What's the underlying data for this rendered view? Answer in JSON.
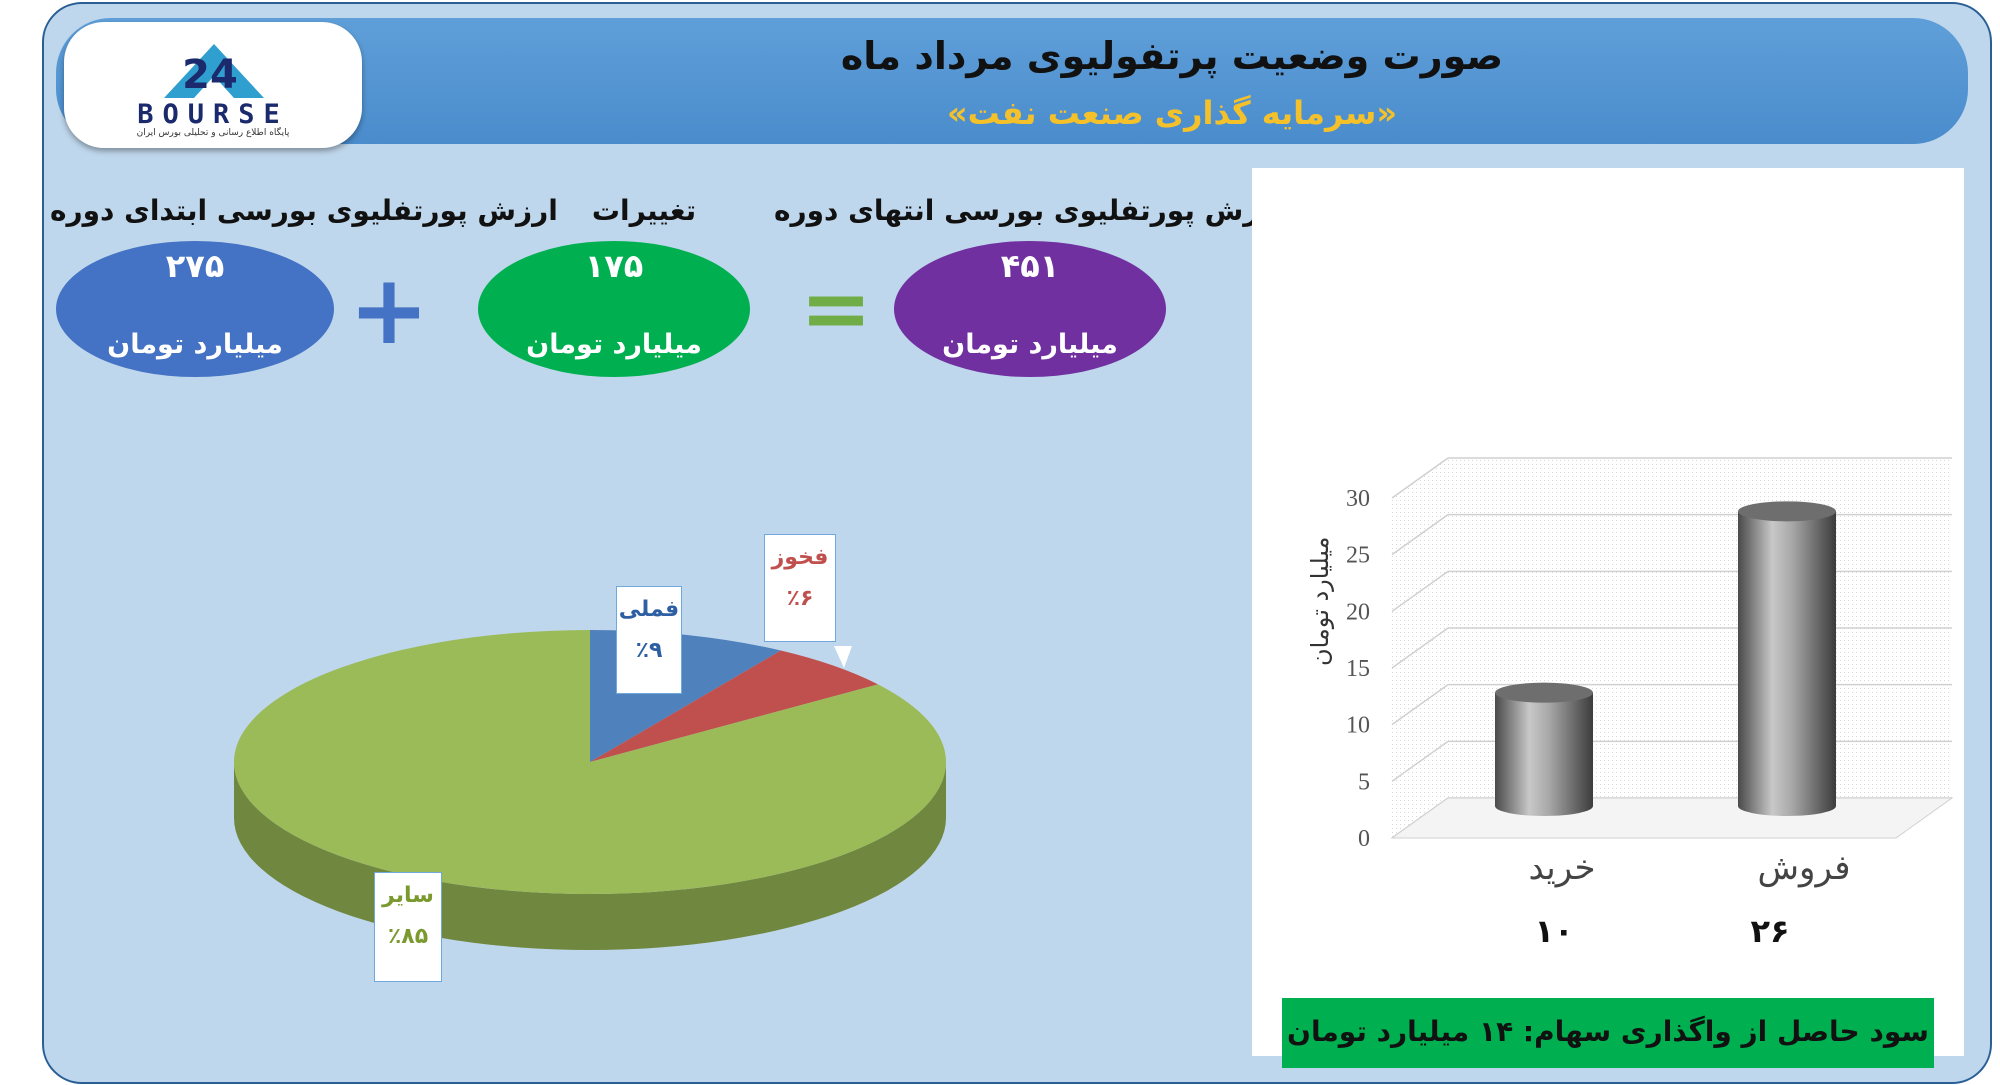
{
  "header": {
    "title": "صورت وضعیت پرتفولیوی مرداد ماه",
    "subtitle": "«سرمایه گذاری صنعت نفت»"
  },
  "logo": {
    "text": "BOURSE",
    "number": "24",
    "caption": "پایگاه اطلاع رسانی و تحلیلی بورس ایران"
  },
  "summary": {
    "end": {
      "label": "ارزش پورتفلیوی بورسی انتهای دوره",
      "value": "۴۵۱",
      "unit": "میلیارد تومان",
      "color": "#7030a0"
    },
    "change": {
      "label": "تغییرات",
      "value": "۱۷۵",
      "unit": "میلیارد تومان",
      "color": "#00b050"
    },
    "start": {
      "label": "ارزش پورتفلیوی بورسی ابتدای دوره",
      "value": "۲۷۵",
      "unit": "میلیارد تومان",
      "color": "#4472c4"
    },
    "plus_symbol": "+",
    "equals_symbol": "=",
    "plus_color": "#4472c4",
    "equals_color": "#70ad47"
  },
  "chart_data": [
    {
      "type": "pie",
      "title": "",
      "slices": [
        {
          "label": "فملی",
          "percent_label": "٪۹",
          "value": 9,
          "color": "#4f81bd",
          "label_color": "#2e5fa3"
        },
        {
          "label": "فخوز",
          "percent_label": "٪۶",
          "value": 6,
          "color": "#c0504d",
          "label_color": "#c0504d"
        },
        {
          "label": "سایر",
          "percent_label": "٪۸۵",
          "value": 85,
          "color": "#9bbb59",
          "label_color": "#7a9a2e"
        }
      ]
    },
    {
      "type": "bar",
      "title": "",
      "categories": [
        "خرید",
        "فروش"
      ],
      "values": [
        10,
        26
      ],
      "value_labels": [
        "۱۰",
        "۲۶"
      ],
      "ylabel": "میلیارد تومان",
      "ylim": [
        0,
        30
      ],
      "yticks": [
        0,
        5,
        10,
        15,
        20,
        25,
        30
      ],
      "grid": true,
      "style": "3d-cylinder",
      "bar_color": "#8c8c8c"
    }
  ],
  "profit": {
    "text": "سود حاصل از واگذاری سهام: ۱۴ میلیارد تومان"
  }
}
